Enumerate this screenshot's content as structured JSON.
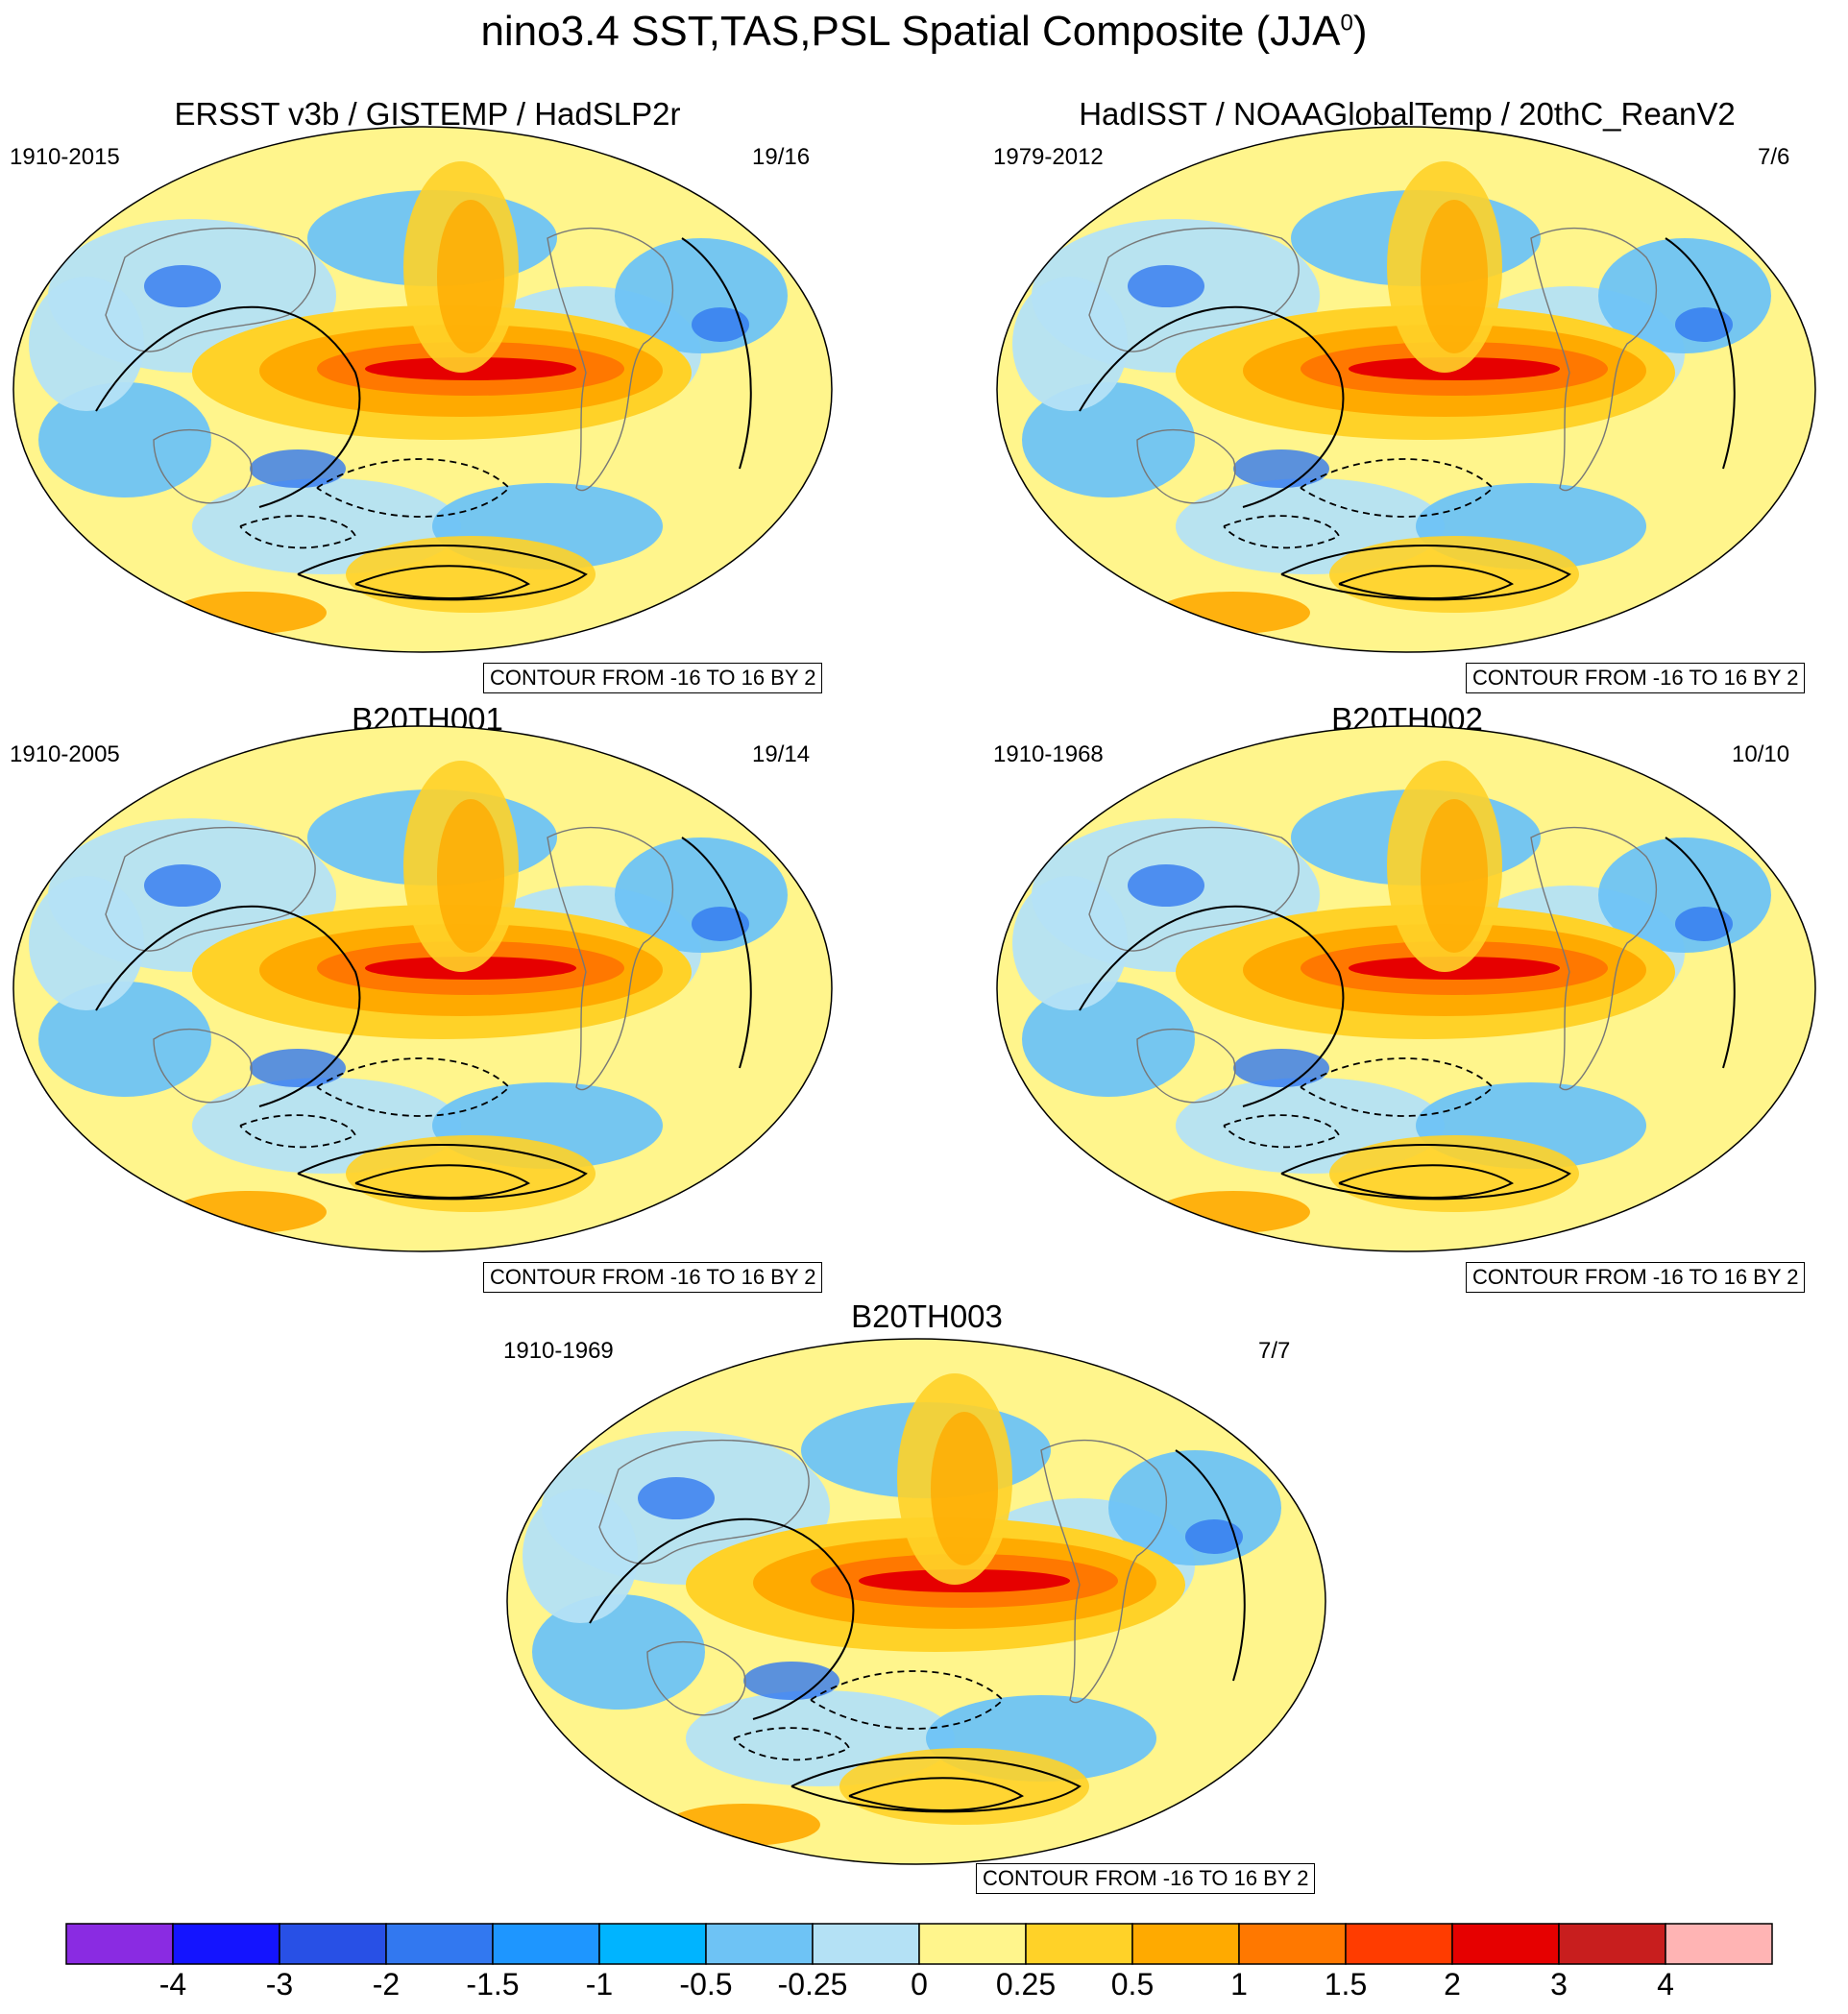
{
  "title": "nino3.4 SST,TAS,PSL Spatial Composite (JJA",
  "title_superscript": "0",
  "title_close": ")",
  "contour_note": "CONTOUR FROM -16 TO 16 BY 2",
  "panels": [
    {
      "title": "ERSST v3b / GISTEMP / HadSLP2r",
      "period": "1910-2015",
      "count": "19/16"
    },
    {
      "title": "HadISST / NOAAGlobalTemp / 20thC_ReanV2",
      "period": "1979-2012",
      "count": "7/6"
    },
    {
      "title": "B20TH001",
      "period": "1910-2005",
      "count": "19/14"
    },
    {
      "title": "B20TH002",
      "period": "1910-1968",
      "count": "10/10"
    },
    {
      "title": "B20TH003",
      "period": "1910-1969",
      "count": "7/7"
    }
  ],
  "colorbar": {
    "labels": [
      "-4",
      "-3",
      "-2",
      "-1.5",
      "-1",
      "-0.5",
      "-0.25",
      "0",
      "0.25",
      "0.5",
      "1",
      "1.5",
      "2",
      "3",
      "4"
    ],
    "colors": [
      "#8a2be2",
      "#1414ff",
      "#2850e6",
      "#3278f0",
      "#1e96ff",
      "#00b4ff",
      "#6ec3f5",
      "#b4e1f5",
      "#fff58c",
      "#ffd228",
      "#ffaa00",
      "#ff7800",
      "#ff3c00",
      "#e60000",
      "#c81e1e",
      "#ffb4b4"
    ]
  },
  "map_colors": {
    "ocean_cool": "#b4e1f5",
    "ocean_mid_cool": "#6ec3f5",
    "ocean_warm": "#fff58c",
    "warm1": "#ffd228",
    "warm2": "#ffaa00",
    "warm3": "#ff7800",
    "hot": "#e60000",
    "cold": "#3278f0"
  }
}
